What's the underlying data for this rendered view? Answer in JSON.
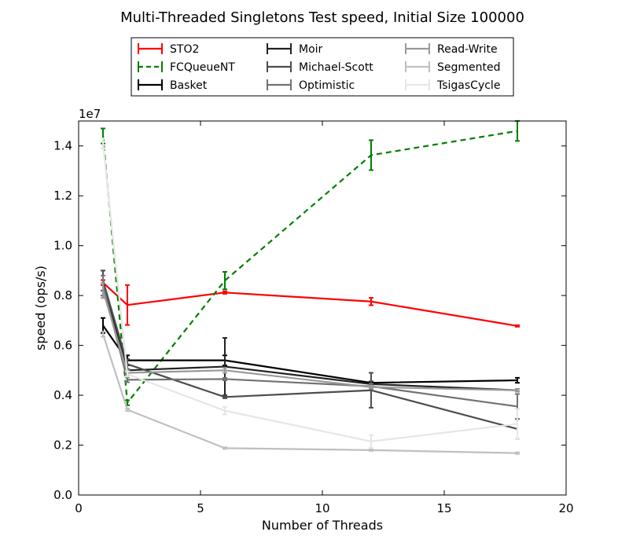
{
  "chart_data": {
    "type": "line",
    "title": "Multi-Threaded Singletons Test speed, Initial Size 100000",
    "xlabel": "Number of Threads",
    "ylabel": "speed (ops/s)",
    "y_scale_label": "1e7",
    "xlim": [
      0,
      20
    ],
    "ylim": [
      0,
      1.5
    ],
    "x_ticks": [
      0,
      5,
      10,
      15,
      20
    ],
    "y_ticks": [
      0.0,
      0.2,
      0.4,
      0.6,
      0.8,
      1.0,
      1.2,
      1.4
    ],
    "x_tick_labels": [
      "0",
      "5",
      "10",
      "15",
      "20"
    ],
    "y_tick_labels": [
      "0.0",
      "0.2",
      "0.4",
      "0.6",
      "0.8",
      "1.0",
      "1.2",
      "1.4"
    ],
    "grid": false,
    "legend_position": "top-center",
    "x": [
      1,
      2,
      6,
      12,
      18
    ],
    "series": [
      {
        "name": "STO2",
        "color": "#ff0000",
        "dash": "solid",
        "values": [
          0.852,
          0.762,
          0.812,
          0.776,
          0.678
        ],
        "err": [
          0.01,
          0.08,
          0.005,
          0.015,
          0.003
        ]
      },
      {
        "name": "FCQueueNT",
        "color": "#007f00",
        "dash": "dashed",
        "values": [
          1.44,
          0.37,
          0.86,
          1.363,
          1.46
        ],
        "err": [
          0.03,
          0.01,
          0.035,
          0.06,
          0.04
        ]
      },
      {
        "name": "Basket",
        "color": "#000000",
        "dash": "solid",
        "values": [
          0.68,
          0.54,
          0.54,
          0.45,
          0.46
        ],
        "err": [
          0.03,
          0.02,
          0.02,
          0.005,
          0.01
        ]
      },
      {
        "name": "Moir",
        "color": "#222222",
        "dash": "solid",
        "values": [
          0.85,
          0.5,
          0.515,
          0.445,
          0.42
        ],
        "err": [
          0.05,
          0.02,
          0.115,
          0.01,
          0.005
        ]
      },
      {
        "name": "Michael-Scott",
        "color": "#4d4d4d",
        "dash": "solid",
        "values": [
          0.86,
          0.525,
          0.393,
          0.42,
          0.265
        ],
        "err": [
          0.04,
          0.02,
          0.005,
          0.07,
          0.04
        ]
      },
      {
        "name": "Optimistic",
        "color": "#727272",
        "dash": "solid",
        "values": [
          0.84,
          0.462,
          0.465,
          0.436,
          0.355
        ],
        "err": [
          0.04,
          0.01,
          0.005,
          0.01,
          0.05
        ]
      },
      {
        "name": "Read-Write",
        "color": "#999999",
        "dash": "solid",
        "values": [
          0.82,
          0.49,
          0.5,
          0.433,
          0.42
        ],
        "err": [
          0.03,
          0.01,
          0.01,
          0.005,
          0.005
        ]
      },
      {
        "name": "Segmented",
        "color": "#bfbfbf",
        "dash": "solid",
        "values": [
          0.645,
          0.342,
          0.188,
          0.18,
          0.168
        ],
        "err": [
          0.01,
          0.005,
          0.003,
          0.003,
          0.003
        ]
      },
      {
        "name": "TsigasCycle",
        "color": "#e6e6e6",
        "dash": "solid",
        "values": [
          1.41,
          0.485,
          0.338,
          0.215,
          0.285
        ],
        "err": [
          0.02,
          0.01,
          0.015,
          0.025,
          0.06
        ]
      }
    ]
  }
}
